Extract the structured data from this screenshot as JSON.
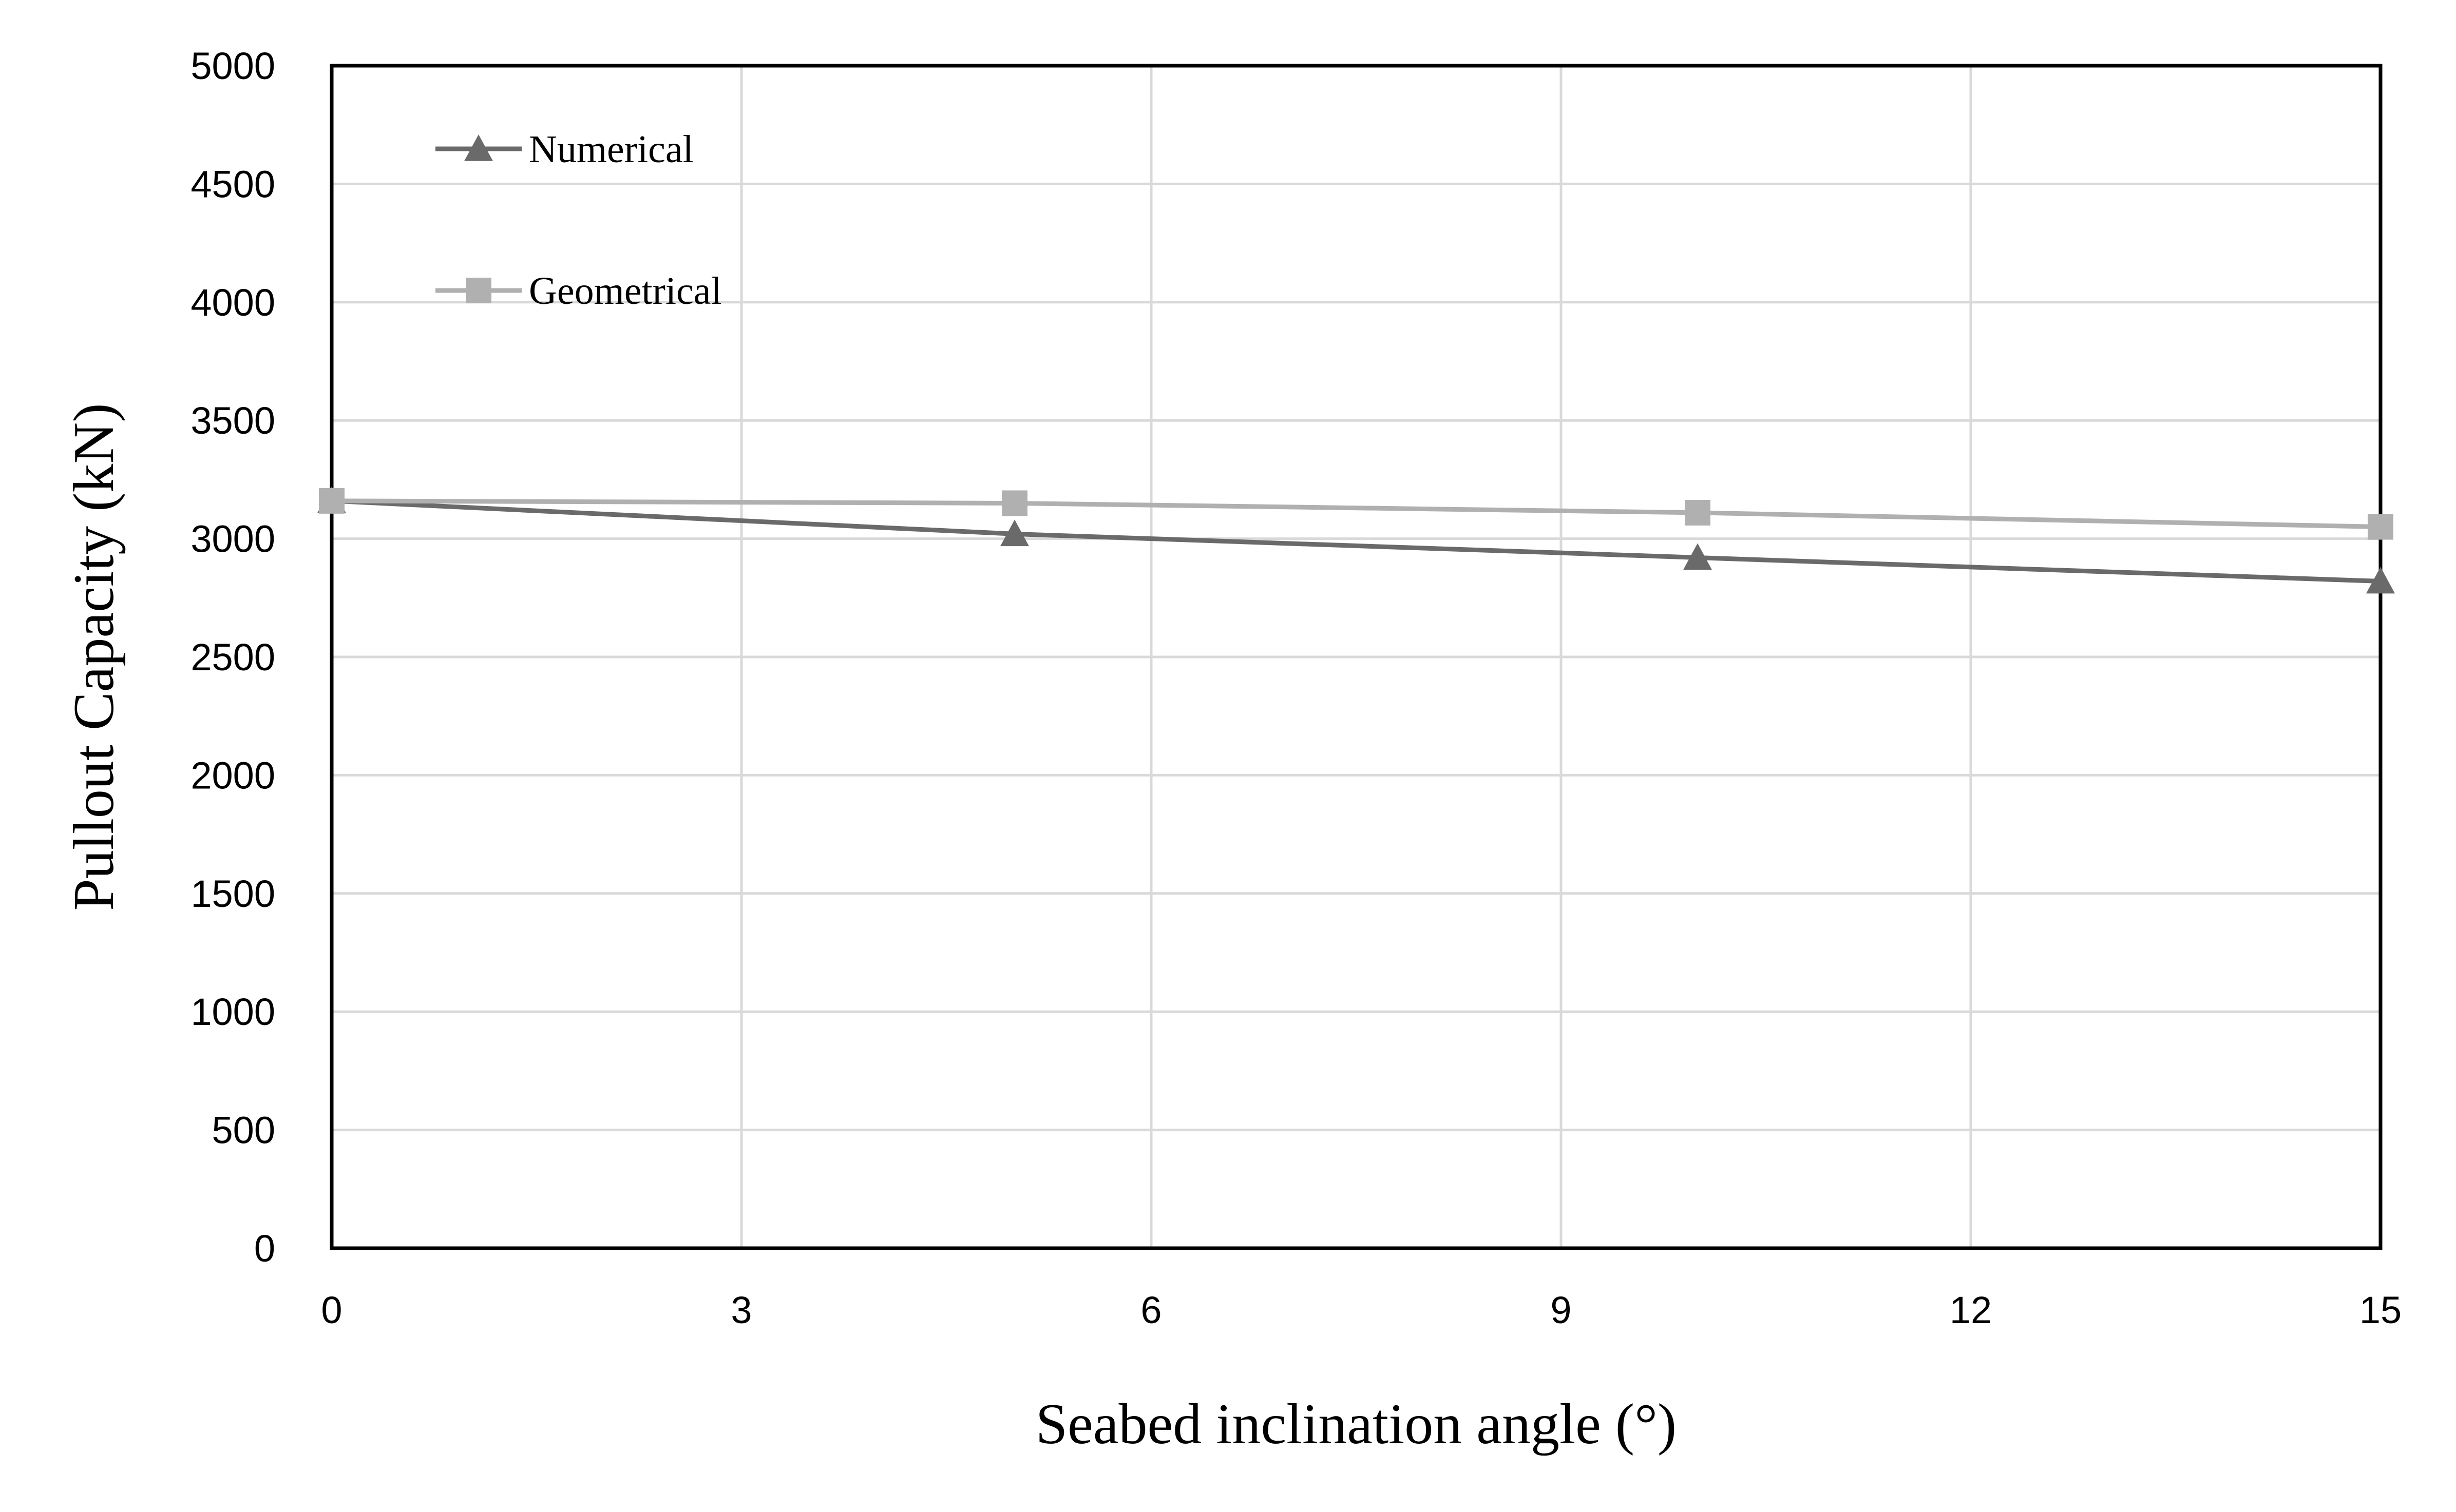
{
  "chart_data": {
    "type": "line",
    "title": "",
    "xlabel": "Seabed inclination angle (°)",
    "ylabel": "Pullout Capacity (kN)",
    "xlim": [
      0,
      15
    ],
    "ylim": [
      0,
      5000
    ],
    "xticks": [
      0,
      3,
      6,
      9,
      12,
      15
    ],
    "yticks": [
      0,
      500,
      1000,
      1500,
      2000,
      2500,
      3000,
      3500,
      4000,
      4500,
      5000
    ],
    "grid": true,
    "legend_position": "top-left",
    "series": [
      {
        "name": "Numerical",
        "marker": "triangle",
        "color": "#6a6a6a",
        "x": [
          0,
          5,
          10,
          15
        ],
        "values": [
          3160,
          3020,
          2920,
          2820
        ]
      },
      {
        "name": "Geometrical",
        "marker": "square",
        "color": "#b0b0b0",
        "x": [
          0,
          5,
          10,
          15
        ],
        "values": [
          3160,
          3150,
          3110,
          3050
        ]
      }
    ]
  }
}
